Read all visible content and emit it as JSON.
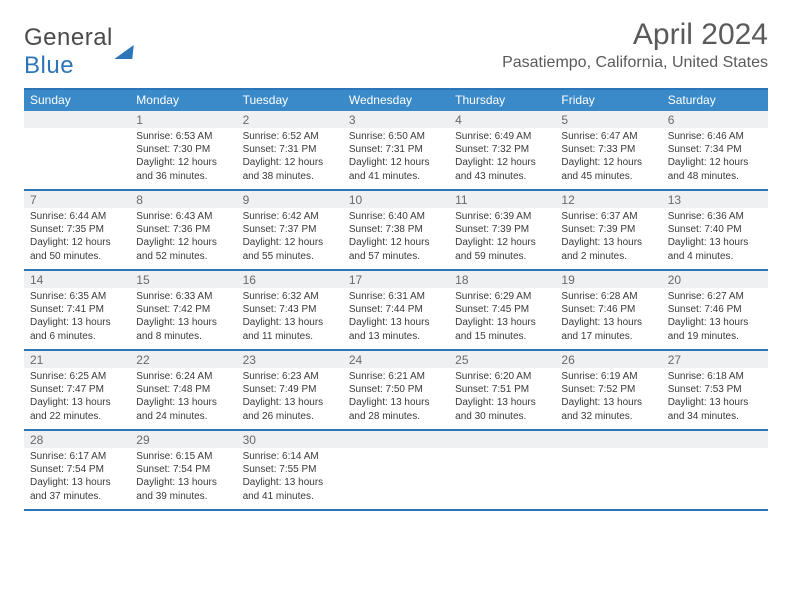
{
  "logo": {
    "text_gray": "General",
    "text_blue": "Blue"
  },
  "title": "April 2024",
  "location": "Pasatiempo, California, United States",
  "weekdays": [
    "Sunday",
    "Monday",
    "Tuesday",
    "Wednesday",
    "Thursday",
    "Friday",
    "Saturday"
  ],
  "colors": {
    "header_bar": "#3a8ac9",
    "rule": "#2c75b8",
    "daynum_bg": "#eef0f1",
    "text": "#3a3a3a",
    "muted": "#5a5a5a"
  },
  "fonts": {
    "title_pt": 30,
    "location_pt": 16,
    "weekday_pt": 12,
    "daynum_pt": 12,
    "body_pt": 10
  },
  "weeks": [
    [
      {
        "day": "",
        "sunrise": "",
        "sunset": "",
        "daylight": ""
      },
      {
        "day": "1",
        "sunrise": "Sunrise: 6:53 AM",
        "sunset": "Sunset: 7:30 PM",
        "daylight": "Daylight: 12 hours and 36 minutes."
      },
      {
        "day": "2",
        "sunrise": "Sunrise: 6:52 AM",
        "sunset": "Sunset: 7:31 PM",
        "daylight": "Daylight: 12 hours and 38 minutes."
      },
      {
        "day": "3",
        "sunrise": "Sunrise: 6:50 AM",
        "sunset": "Sunset: 7:31 PM",
        "daylight": "Daylight: 12 hours and 41 minutes."
      },
      {
        "day": "4",
        "sunrise": "Sunrise: 6:49 AM",
        "sunset": "Sunset: 7:32 PM",
        "daylight": "Daylight: 12 hours and 43 minutes."
      },
      {
        "day": "5",
        "sunrise": "Sunrise: 6:47 AM",
        "sunset": "Sunset: 7:33 PM",
        "daylight": "Daylight: 12 hours and 45 minutes."
      },
      {
        "day": "6",
        "sunrise": "Sunrise: 6:46 AM",
        "sunset": "Sunset: 7:34 PM",
        "daylight": "Daylight: 12 hours and 48 minutes."
      }
    ],
    [
      {
        "day": "7",
        "sunrise": "Sunrise: 6:44 AM",
        "sunset": "Sunset: 7:35 PM",
        "daylight": "Daylight: 12 hours and 50 minutes."
      },
      {
        "day": "8",
        "sunrise": "Sunrise: 6:43 AM",
        "sunset": "Sunset: 7:36 PM",
        "daylight": "Daylight: 12 hours and 52 minutes."
      },
      {
        "day": "9",
        "sunrise": "Sunrise: 6:42 AM",
        "sunset": "Sunset: 7:37 PM",
        "daylight": "Daylight: 12 hours and 55 minutes."
      },
      {
        "day": "10",
        "sunrise": "Sunrise: 6:40 AM",
        "sunset": "Sunset: 7:38 PM",
        "daylight": "Daylight: 12 hours and 57 minutes."
      },
      {
        "day": "11",
        "sunrise": "Sunrise: 6:39 AM",
        "sunset": "Sunset: 7:39 PM",
        "daylight": "Daylight: 12 hours and 59 minutes."
      },
      {
        "day": "12",
        "sunrise": "Sunrise: 6:37 AM",
        "sunset": "Sunset: 7:39 PM",
        "daylight": "Daylight: 13 hours and 2 minutes."
      },
      {
        "day": "13",
        "sunrise": "Sunrise: 6:36 AM",
        "sunset": "Sunset: 7:40 PM",
        "daylight": "Daylight: 13 hours and 4 minutes."
      }
    ],
    [
      {
        "day": "14",
        "sunrise": "Sunrise: 6:35 AM",
        "sunset": "Sunset: 7:41 PM",
        "daylight": "Daylight: 13 hours and 6 minutes."
      },
      {
        "day": "15",
        "sunrise": "Sunrise: 6:33 AM",
        "sunset": "Sunset: 7:42 PM",
        "daylight": "Daylight: 13 hours and 8 minutes."
      },
      {
        "day": "16",
        "sunrise": "Sunrise: 6:32 AM",
        "sunset": "Sunset: 7:43 PM",
        "daylight": "Daylight: 13 hours and 11 minutes."
      },
      {
        "day": "17",
        "sunrise": "Sunrise: 6:31 AM",
        "sunset": "Sunset: 7:44 PM",
        "daylight": "Daylight: 13 hours and 13 minutes."
      },
      {
        "day": "18",
        "sunrise": "Sunrise: 6:29 AM",
        "sunset": "Sunset: 7:45 PM",
        "daylight": "Daylight: 13 hours and 15 minutes."
      },
      {
        "day": "19",
        "sunrise": "Sunrise: 6:28 AM",
        "sunset": "Sunset: 7:46 PM",
        "daylight": "Daylight: 13 hours and 17 minutes."
      },
      {
        "day": "20",
        "sunrise": "Sunrise: 6:27 AM",
        "sunset": "Sunset: 7:46 PM",
        "daylight": "Daylight: 13 hours and 19 minutes."
      }
    ],
    [
      {
        "day": "21",
        "sunrise": "Sunrise: 6:25 AM",
        "sunset": "Sunset: 7:47 PM",
        "daylight": "Daylight: 13 hours and 22 minutes."
      },
      {
        "day": "22",
        "sunrise": "Sunrise: 6:24 AM",
        "sunset": "Sunset: 7:48 PM",
        "daylight": "Daylight: 13 hours and 24 minutes."
      },
      {
        "day": "23",
        "sunrise": "Sunrise: 6:23 AM",
        "sunset": "Sunset: 7:49 PM",
        "daylight": "Daylight: 13 hours and 26 minutes."
      },
      {
        "day": "24",
        "sunrise": "Sunrise: 6:21 AM",
        "sunset": "Sunset: 7:50 PM",
        "daylight": "Daylight: 13 hours and 28 minutes."
      },
      {
        "day": "25",
        "sunrise": "Sunrise: 6:20 AM",
        "sunset": "Sunset: 7:51 PM",
        "daylight": "Daylight: 13 hours and 30 minutes."
      },
      {
        "day": "26",
        "sunrise": "Sunrise: 6:19 AM",
        "sunset": "Sunset: 7:52 PM",
        "daylight": "Daylight: 13 hours and 32 minutes."
      },
      {
        "day": "27",
        "sunrise": "Sunrise: 6:18 AM",
        "sunset": "Sunset: 7:53 PM",
        "daylight": "Daylight: 13 hours and 34 minutes."
      }
    ],
    [
      {
        "day": "28",
        "sunrise": "Sunrise: 6:17 AM",
        "sunset": "Sunset: 7:54 PM",
        "daylight": "Daylight: 13 hours and 37 minutes."
      },
      {
        "day": "29",
        "sunrise": "Sunrise: 6:15 AM",
        "sunset": "Sunset: 7:54 PM",
        "daylight": "Daylight: 13 hours and 39 minutes."
      },
      {
        "day": "30",
        "sunrise": "Sunrise: 6:14 AM",
        "sunset": "Sunset: 7:55 PM",
        "daylight": "Daylight: 13 hours and 41 minutes."
      },
      {
        "day": "",
        "sunrise": "",
        "sunset": "",
        "daylight": ""
      },
      {
        "day": "",
        "sunrise": "",
        "sunset": "",
        "daylight": ""
      },
      {
        "day": "",
        "sunrise": "",
        "sunset": "",
        "daylight": ""
      },
      {
        "day": "",
        "sunrise": "",
        "sunset": "",
        "daylight": ""
      }
    ]
  ]
}
